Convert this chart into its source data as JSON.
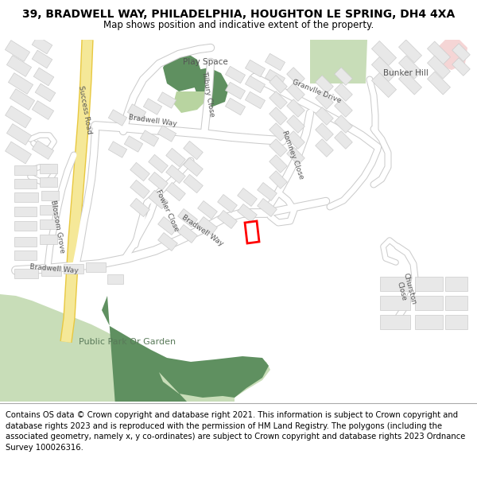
{
  "title_line1": "39, BRADWELL WAY, PHILADELPHIA, HOUGHTON LE SPRING, DH4 4XA",
  "title_line2": "Map shows position and indicative extent of the property.",
  "footer_text": "Contains OS data © Crown copyright and database right 2021. This information is subject to Crown copyright and database rights 2023 and is reproduced with the permission of HM Land Registry. The polygons (including the associated geometry, namely x, y co-ordinates) are subject to Crown copyright and database rights 2023 Ordnance Survey 100026316.",
  "bg_color": "#ffffff",
  "road_color": "#ffffff",
  "road_border": "#cccccc",
  "building_color": "#e8e8e8",
  "building_border": "#cccccc",
  "green_light": "#c8ddb8",
  "green_dark": "#5f9060",
  "green_play_light": "#b8d4a0",
  "green_bunker": "#c8ddb8",
  "pink_area": "#f5d5d5",
  "yellow_road": "#f5e898",
  "yellow_road_border": "#e8c840",
  "highlight_color": "#ff0000",
  "title_fontsize": 10,
  "subtitle_fontsize": 8.5,
  "footer_fontsize": 7.2,
  "map_bg": "#f8f8f8"
}
